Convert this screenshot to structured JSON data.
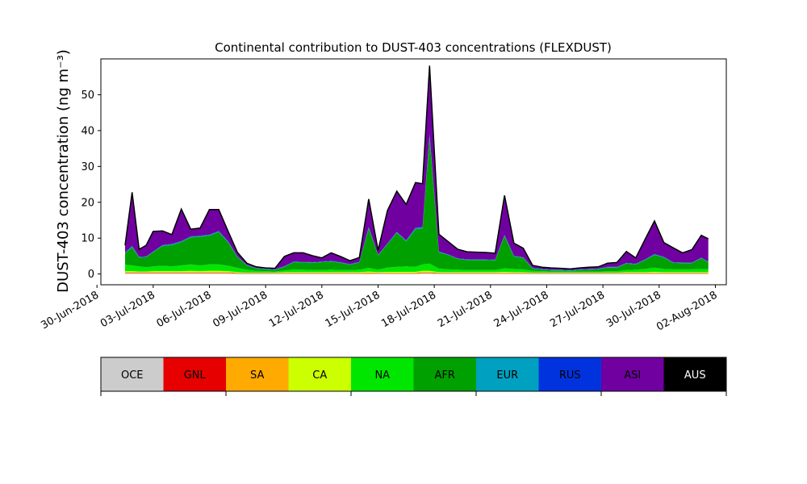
{
  "chart_data": {
    "type": "area",
    "title": "Continental contribution to DUST-403 concentrations (FLEXDUST)",
    "ylabel": "DUST-403 concentration (ng m⁻³)",
    "xlabel": "",
    "ylim": [
      -3,
      60
    ],
    "xlim": [
      "2018-06-30T05:00",
      "2018-08-02T14:00"
    ],
    "grid": false,
    "yticks": [
      0,
      10,
      20,
      30,
      40,
      50
    ],
    "xticks": [
      "2018-06-30",
      "2018-07-03",
      "2018-07-06",
      "2018-07-09",
      "2018-07-12",
      "2018-07-15",
      "2018-07-18",
      "2018-07-21",
      "2018-07-24",
      "2018-07-27",
      "2018-07-30",
      "2018-08-02"
    ],
    "xtick_labels": [
      "30-Jun-2018",
      "03-Jul-2018",
      "06-Jul-2018",
      "09-Jul-2018",
      "12-Jul-2018",
      "15-Jul-2018",
      "18-Jul-2018",
      "21-Jul-2018",
      "24-Jul-2018",
      "27-Jul-2018",
      "30-Jul-2018",
      "02-Aug-2018"
    ],
    "x": [
      "2018-07-01T12:00",
      "2018-07-01T21:00",
      "2018-07-02T06:00",
      "2018-07-02T15:00",
      "2018-07-03T00:00",
      "2018-07-03T12:00",
      "2018-07-04T00:00",
      "2018-07-04T12:00",
      "2018-07-05T00:00",
      "2018-07-05T12:00",
      "2018-07-06T00:00",
      "2018-07-06T12:00",
      "2018-07-07T00:00",
      "2018-07-07T12:00",
      "2018-07-08T00:00",
      "2018-07-08T12:00",
      "2018-07-09T00:00",
      "2018-07-09T12:00",
      "2018-07-10T00:00",
      "2018-07-10T12:00",
      "2018-07-11T00:00",
      "2018-07-11T12:00",
      "2018-07-12T00:00",
      "2018-07-12T12:00",
      "2018-07-13T00:00",
      "2018-07-13T12:00",
      "2018-07-14T00:00",
      "2018-07-14T12:00",
      "2018-07-15T00:00",
      "2018-07-15T12:00",
      "2018-07-16T00:00",
      "2018-07-16T12:00",
      "2018-07-17T00:00",
      "2018-07-17T09:00",
      "2018-07-17T18:00",
      "2018-07-18T06:00",
      "2018-07-18T18:00",
      "2018-07-19T06:00",
      "2018-07-19T18:00",
      "2018-07-20T06:00",
      "2018-07-20T18:00",
      "2018-07-21T06:00",
      "2018-07-21T18:00",
      "2018-07-22T06:00",
      "2018-07-22T18:00",
      "2018-07-23T06:00",
      "2018-07-23T18:00",
      "2018-07-24T06:00",
      "2018-07-24T18:00",
      "2018-07-25T06:00",
      "2018-07-25T18:00",
      "2018-07-26T06:00",
      "2018-07-26T18:00",
      "2018-07-27T06:00",
      "2018-07-27T18:00",
      "2018-07-28T06:00",
      "2018-07-28T18:00",
      "2018-07-29T06:00",
      "2018-07-29T18:00",
      "2018-07-30T06:00",
      "2018-07-30T18:00",
      "2018-07-31T06:00",
      "2018-07-31T18:00",
      "2018-08-01T06:00",
      "2018-08-01T15:00"
    ],
    "series": [
      {
        "name": "OCE",
        "color": "#cccccc",
        "values": [
          0.2,
          0.2,
          0.2,
          0.2,
          0.2,
          0.2,
          0.2,
          0.2,
          0.2,
          0.2,
          0.2,
          0.2,
          0.2,
          0.1,
          0.1,
          0.1,
          0.1,
          0.1,
          0.1,
          0.1,
          0.1,
          0.1,
          0.1,
          0.1,
          0.1,
          0.1,
          0.1,
          0.1,
          0.1,
          0.1,
          0.1,
          0.1,
          0.1,
          0.2,
          0.2,
          0.1,
          0.1,
          0.1,
          0.1,
          0.1,
          0.1,
          0.1,
          0.1,
          0.1,
          0.1,
          0.1,
          0.1,
          0.1,
          0.1,
          0.1,
          0.1,
          0.1,
          0.1,
          0.1,
          0.1,
          0.1,
          0.1,
          0.1,
          0.1,
          0.1,
          0.1,
          0.1,
          0.1,
          0.1,
          0.1
        ]
      },
      {
        "name": "GNL",
        "color": "#e60000",
        "values": [
          0.1,
          0.1,
          0.1,
          0.1,
          0.1,
          0.1,
          0.1,
          0.1,
          0.1,
          0.1,
          0.1,
          0.1,
          0.1,
          0.1,
          0.1,
          0.1,
          0.1,
          0.1,
          0.1,
          0.1,
          0.1,
          0.1,
          0.1,
          0.1,
          0.1,
          0.1,
          0.1,
          0.1,
          0.1,
          0.1,
          0.1,
          0.1,
          0.1,
          0.1,
          0.1,
          0.1,
          0.1,
          0.1,
          0.1,
          0.1,
          0.1,
          0.1,
          0.1,
          0.1,
          0.1,
          0.1,
          0.1,
          0.1,
          0.1,
          0.1,
          0.1,
          0.1,
          0.1,
          0.1,
          0.1,
          0.1,
          0.1,
          0.1,
          0.1,
          0.1,
          0.1,
          0.1,
          0.1,
          0.1,
          0.1
        ]
      },
      {
        "name": "SA",
        "color": "#ffaa00",
        "values": [
          0.2,
          0.2,
          0.2,
          0.2,
          0.2,
          0.2,
          0.2,
          0.2,
          0.2,
          0.2,
          0.2,
          0.2,
          0.2,
          0.1,
          0.1,
          0.1,
          0.1,
          0.1,
          0.1,
          0.1,
          0.1,
          0.1,
          0.1,
          0.1,
          0.1,
          0.1,
          0.1,
          0.2,
          0.1,
          0.1,
          0.1,
          0.1,
          0.1,
          0.2,
          0.2,
          0.1,
          0.1,
          0.1,
          0.1,
          0.1,
          0.1,
          0.1,
          0.1,
          0.1,
          0.1,
          0.1,
          0.1,
          0.1,
          0.1,
          0.1,
          0.1,
          0.1,
          0.1,
          0.1,
          0.1,
          0.1,
          0.1,
          0.1,
          0.1,
          0.1,
          0.1,
          0.1,
          0.1,
          0.1,
          0.1
        ]
      },
      {
        "name": "CA",
        "color": "#ccff00",
        "values": [
          0.3,
          0.3,
          0.2,
          0.2,
          0.3,
          0.3,
          0.3,
          0.3,
          0.4,
          0.3,
          0.4,
          0.4,
          0.3,
          0.2,
          0.1,
          0.1,
          0.1,
          0.1,
          0.2,
          0.2,
          0.2,
          0.2,
          0.2,
          0.2,
          0.2,
          0.2,
          0.2,
          0.3,
          0.2,
          0.3,
          0.3,
          0.3,
          0.3,
          0.4,
          0.4,
          0.2,
          0.2,
          0.2,
          0.2,
          0.2,
          0.2,
          0.2,
          0.3,
          0.2,
          0.2,
          0.1,
          0.1,
          0.1,
          0.1,
          0.1,
          0.1,
          0.1,
          0.1,
          0.1,
          0.1,
          0.2,
          0.2,
          0.2,
          0.3,
          0.2,
          0.2,
          0.2,
          0.2,
          0.2,
          0.2
        ]
      },
      {
        "name": "NA",
        "color": "#00e600",
        "values": [
          1.8,
          1.6,
          1.4,
          1.2,
          1.3,
          1.5,
          1.3,
          1.6,
          1.8,
          1.6,
          1.8,
          1.8,
          1.5,
          1.2,
          0.8,
          0.5,
          0.4,
          0.3,
          0.5,
          0.8,
          0.7,
          0.6,
          0.6,
          0.7,
          0.6,
          0.6,
          0.7,
          1.0,
          0.7,
          1.2,
          1.4,
          1.5,
          1.4,
          1.8,
          2.0,
          1.0,
          0.8,
          0.7,
          0.6,
          0.6,
          0.6,
          0.6,
          1.0,
          0.9,
          0.8,
          0.5,
          0.4,
          0.3,
          0.3,
          0.3,
          0.3,
          0.3,
          0.3,
          0.4,
          0.4,
          0.6,
          0.7,
          0.9,
          1.2,
          0.9,
          0.8,
          0.8,
          0.8,
          0.9,
          0.8
        ]
      },
      {
        "name": "AFR",
        "color": "#00a000",
        "values": [
          3.2,
          5.0,
          2.5,
          2.8,
          4.0,
          5.5,
          6.0,
          6.5,
          7.5,
          8.0,
          8.0,
          9.0,
          6.5,
          3.0,
          1.2,
          0.6,
          0.5,
          0.4,
          1.0,
          2.0,
          2.0,
          2.0,
          2.2,
          2.3,
          2.0,
          1.5,
          2.0,
          11.0,
          4.0,
          6.5,
          9.5,
          7.0,
          10.5,
          10.0,
          35.0,
          4.5,
          4.0,
          3.0,
          2.8,
          2.8,
          2.8,
          2.7,
          9.0,
          3.5,
          3.2,
          0.6,
          0.4,
          0.3,
          0.3,
          0.2,
          0.4,
          0.5,
          0.6,
          1.0,
          1.0,
          1.8,
          1.5,
          2.5,
          3.5,
          3.2,
          1.8,
          1.7,
          1.7,
          3.0,
          2.0
        ]
      },
      {
        "name": "EUR",
        "color": "#00a0c0",
        "values": [
          0.1,
          0.3,
          0.1,
          0.1,
          0.1,
          0.2,
          0.2,
          0.2,
          0.2,
          0.2,
          0.2,
          0.2,
          0.2,
          0.1,
          0.1,
          0.1,
          0.1,
          0.1,
          0.1,
          0.1,
          0.1,
          0.1,
          0.1,
          0.1,
          0.1,
          0.1,
          0.1,
          0.3,
          0.1,
          0.1,
          0.2,
          0.2,
          0.3,
          0.3,
          0.8,
          0.2,
          0.1,
          0.1,
          0.1,
          0.1,
          0.1,
          0.1,
          0.2,
          0.1,
          0.1,
          0.1,
          0.1,
          0.1,
          0.1,
          0.1,
          0.1,
          0.1,
          0.1,
          0.1,
          0.1,
          0.1,
          0.1,
          0.1,
          0.2,
          0.1,
          0.1,
          0.1,
          0.1,
          0.1,
          0.1
        ]
      },
      {
        "name": "RUS",
        "color": "#0033dd",
        "values": [
          0.1,
          0.2,
          0.1,
          0.1,
          0.1,
          0.1,
          0.1,
          0.1,
          0.1,
          0.1,
          0.1,
          0.1,
          0.1,
          0.1,
          0.1,
          0.1,
          0.1,
          0.1,
          0.1,
          0.1,
          0.1,
          0.1,
          0.1,
          0.1,
          0.1,
          0.1,
          0.1,
          0.1,
          0.1,
          0.1,
          0.1,
          0.1,
          0.1,
          0.2,
          0.3,
          0.1,
          0.1,
          0.1,
          0.1,
          0.1,
          0.1,
          0.1,
          0.1,
          0.1,
          0.1,
          0.1,
          0.1,
          0.1,
          0.1,
          0.1,
          0.1,
          0.1,
          0.1,
          0.1,
          0.1,
          0.1,
          0.1,
          0.1,
          0.1,
          0.1,
          0.1,
          0.1,
          0.1,
          0.1,
          0.1
        ]
      },
      {
        "name": "ASI",
        "color": "#7000a0",
        "values": [
          2.0,
          14.9,
          2.1,
          3.1,
          5.6,
          3.9,
          2.6,
          8.9,
          2.0,
          2.1,
          7.0,
          6.0,
          2.8,
          1.1,
          0.4,
          0.3,
          0.2,
          0.3,
          2.7,
          2.4,
          2.5,
          1.8,
          1.0,
          2.2,
          1.6,
          0.9,
          1.2,
          7.8,
          1.2,
          9.2,
          11.3,
          10.0,
          12.6,
          12.0,
          19.1,
          4.8,
          3.5,
          2.5,
          2.1,
          2.0,
          1.9,
          1.8,
          11.0,
          3.5,
          2.5,
          0.7,
          0.5,
          0.5,
          0.4,
          0.3,
          0.4,
          0.5,
          0.5,
          1.0,
          1.2,
          3.2,
          1.6,
          5.6,
          9.2,
          4.0,
          4.0,
          2.7,
          3.6,
          6.2,
          6.3
        ]
      },
      {
        "name": "AUS",
        "color": "#000000",
        "values": [
          0,
          0,
          0,
          0,
          0,
          0,
          0,
          0,
          0,
          0,
          0,
          0,
          0,
          0,
          0,
          0,
          0,
          0,
          0,
          0,
          0,
          0,
          0,
          0,
          0,
          0,
          0,
          0,
          0,
          0,
          0,
          0,
          0,
          0,
          0,
          0,
          0,
          0,
          0,
          0,
          0,
          0,
          0,
          0,
          0,
          0,
          0,
          0,
          0,
          0,
          0,
          0,
          0,
          0,
          0,
          0,
          0,
          0,
          0,
          0,
          0,
          0,
          0,
          0,
          0
        ]
      }
    ],
    "total_line_color": "#000000",
    "legend": {
      "placement": "bottom",
      "entries": [
        "OCE",
        "GNL",
        "SA",
        "CA",
        "NA",
        "AFR",
        "EUR",
        "RUS",
        "ASI",
        "AUS"
      ],
      "text_colors": [
        "#000000",
        "#000000",
        "#000000",
        "#000000",
        "#000000",
        "#000000",
        "#000000",
        "#000000",
        "#000000",
        "#ffffff"
      ]
    }
  }
}
